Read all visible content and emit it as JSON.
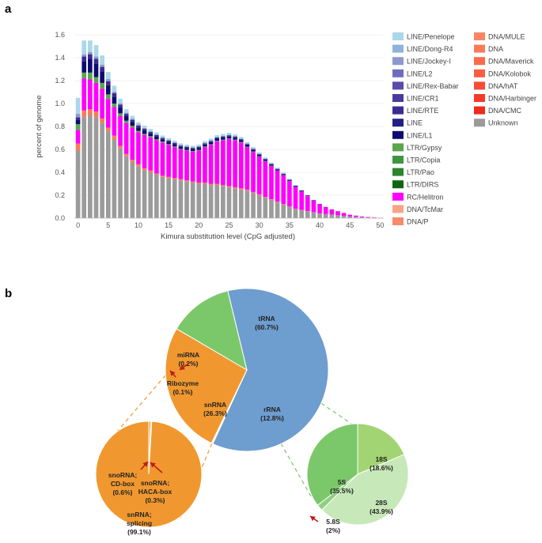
{
  "panels": {
    "a": "a",
    "b": "b"
  },
  "chart_data": [
    {
      "type": "bar",
      "stacked": true,
      "xlabel": "Kimura substitution level (CpG adjusted)",
      "ylabel": "percent of genome",
      "x": [
        0,
        1,
        2,
        3,
        4,
        5,
        6,
        7,
        8,
        9,
        10,
        11,
        12,
        13,
        14,
        15,
        16,
        17,
        18,
        19,
        20,
        21,
        22,
        23,
        24,
        25,
        26,
        27,
        28,
        29,
        30,
        31,
        32,
        33,
        34,
        35,
        36,
        37,
        38,
        39,
        40,
        41,
        42,
        43,
        44,
        45,
        46,
        47,
        48,
        49,
        50
      ],
      "xticks": [
        "0",
        "5",
        "10",
        "15",
        "20",
        "25",
        "30",
        "35",
        "40",
        "45",
        "50"
      ],
      "yticks": [
        "0.0",
        "0.2",
        "0.4",
        "0.6",
        "0.8",
        "1.0",
        "1.2",
        "1.4",
        "1.6"
      ],
      "ylim": [
        0,
        1.6
      ],
      "xlim": [
        -0.6,
        50.6
      ],
      "legend": [
        {
          "name": "LINE/Penelope",
          "color": "#a9d8e9"
        },
        {
          "name": "LINE/Dong-R4",
          "color": "#8fb3d9"
        },
        {
          "name": "LINE/Jockey-I",
          "color": "#8e99cf"
        },
        {
          "name": "LINE/L2",
          "color": "#6e6cbe"
        },
        {
          "name": "LINE/Rex-Babar",
          "color": "#5a4cab"
        },
        {
          "name": "LINE/CR1",
          "color": "#4a3aa0"
        },
        {
          "name": "LINE/RTE",
          "color": "#3b2b92"
        },
        {
          "name": "LINE",
          "color": "#241f86"
        },
        {
          "name": "LINE/L1",
          "color": "#0c0c70"
        },
        {
          "name": "LTR/Gypsy",
          "color": "#5aa64e"
        },
        {
          "name": "LTR/Copia",
          "color": "#3f9640"
        },
        {
          "name": "LTR/Pao",
          "color": "#2b852f"
        },
        {
          "name": "LTR/DIRS",
          "color": "#0e6614"
        },
        {
          "name": "RC/Helitron",
          "color": "#ff00ff"
        },
        {
          "name": "DNA/TcMar",
          "color": "#f8a383"
        },
        {
          "name": "DNA/P",
          "color": "#f88a6c"
        },
        {
          "name": "DNA/MULE",
          "color": "#f98565"
        },
        {
          "name": "DNA",
          "color": "#fa7a58"
        },
        {
          "name": "DNA/Maverick",
          "color": "#fa6b4c"
        },
        {
          "name": "DNA/Kolobok",
          "color": "#fa5c40"
        },
        {
          "name": "DNA/hAT",
          "color": "#f84c34"
        },
        {
          "name": "DNA/Harbinger",
          "color": "#f53a28"
        },
        {
          "name": "DNA/CMC",
          "color": "#f02a1c"
        },
        {
          "name": "Unknown",
          "color": "#9b9b9b"
        }
      ],
      "series_values": {
        "Unknown": [
          0.59,
          0.88,
          0.9,
          0.88,
          0.83,
          0.76,
          0.69,
          0.61,
          0.54,
          0.49,
          0.45,
          0.42,
          0.4,
          0.38,
          0.36,
          0.35,
          0.34,
          0.33,
          0.32,
          0.31,
          0.3,
          0.3,
          0.29,
          0.29,
          0.28,
          0.27,
          0.26,
          0.25,
          0.24,
          0.22,
          0.2,
          0.18,
          0.16,
          0.14,
          0.12,
          0.1,
          0.08,
          0.07,
          0.06,
          0.05,
          0.04,
          0.035,
          0.03,
          0.025,
          0.02,
          0.015,
          0.012,
          0.008,
          0.005,
          0.003,
          0.002
        ],
        "DNA": [
          0.06,
          0.06,
          0.05,
          0.05,
          0.04,
          0.03,
          0.03,
          0.02,
          0.02,
          0.02,
          0.02,
          0.015,
          0.015,
          0.01,
          0.01,
          0.01,
          0.01,
          0.01,
          0.01,
          0.01,
          0.01,
          0.01,
          0.01,
          0.01,
          0.01,
          0.01,
          0.01,
          0.01,
          0.01,
          0.008,
          0.008,
          0.006,
          0.005,
          0.004,
          0.004,
          0.003,
          0.003,
          0.002,
          0.002,
          0.002,
          0.001,
          0.001,
          0.001,
          0,
          0,
          0,
          0,
          0,
          0,
          0,
          0
        ],
        "RC/Helitron": [
          0.12,
          0.28,
          0.26,
          0.25,
          0.26,
          0.25,
          0.25,
          0.26,
          0.27,
          0.28,
          0.28,
          0.29,
          0.29,
          0.29,
          0.29,
          0.28,
          0.27,
          0.26,
          0.26,
          0.26,
          0.28,
          0.31,
          0.34,
          0.37,
          0.39,
          0.41,
          0.41,
          0.4,
          0.37,
          0.35,
          0.33,
          0.31,
          0.29,
          0.27,
          0.25,
          0.22,
          0.19,
          0.16,
          0.13,
          0.1,
          0.08,
          0.06,
          0.045,
          0.035,
          0.025,
          0.015,
          0.01,
          0.007,
          0.005,
          0.003,
          0.002
        ],
        "LTR/Gypsy": [
          0.05,
          0.05,
          0.06,
          0.05,
          0.05,
          0.04,
          0.03,
          0.025,
          0.02,
          0.015,
          0.012,
          0.01,
          0.01,
          0.008,
          0.008,
          0.006,
          0.006,
          0.005,
          0.005,
          0.005,
          0.005,
          0.005,
          0.005,
          0.005,
          0.005,
          0.005,
          0.005,
          0.004,
          0.004,
          0.004,
          0.003,
          0.003,
          0.003,
          0.002,
          0.002,
          0.002,
          0.001,
          0.001,
          0.001,
          0,
          0,
          0,
          0,
          0,
          0,
          0,
          0,
          0,
          0,
          0,
          0
        ],
        "LINE/L1": [
          0.04,
          0.1,
          0.12,
          0.12,
          0.1,
          0.08,
          0.06,
          0.05,
          0.04,
          0.035,
          0.03,
          0.03,
          0.025,
          0.025,
          0.02,
          0.02,
          0.02,
          0.018,
          0.018,
          0.018,
          0.018,
          0.018,
          0.018,
          0.018,
          0.018,
          0.018,
          0.016,
          0.015,
          0.014,
          0.013,
          0.012,
          0.011,
          0.01,
          0.009,
          0.008,
          0.007,
          0.006,
          0.005,
          0.004,
          0.003,
          0.002,
          0.002,
          0.001,
          0.001,
          0,
          0,
          0,
          0,
          0,
          0,
          0
        ],
        "LINE/RTE": [
          0.02,
          0.04,
          0.04,
          0.04,
          0.04,
          0.035,
          0.03,
          0.025,
          0.02,
          0.018,
          0.015,
          0.014,
          0.012,
          0.012,
          0.011,
          0.01,
          0.01,
          0.01,
          0.01,
          0.01,
          0.01,
          0.01,
          0.01,
          0.01,
          0.01,
          0.01,
          0.01,
          0.01,
          0.009,
          0.008,
          0.007,
          0.006,
          0.005,
          0.005,
          0.004,
          0.004,
          0.003,
          0.003,
          0.002,
          0.002,
          0.001,
          0.001,
          0,
          0,
          0,
          0,
          0,
          0,
          0,
          0,
          0
        ],
        "LINE/Jockey-I": [
          0.03,
          0.02,
          0.02,
          0.02,
          0.02,
          0.02,
          0.015,
          0.012,
          0.01,
          0.01,
          0.01,
          0.008,
          0.008,
          0.008,
          0.007,
          0.007,
          0.007,
          0.007,
          0.006,
          0.006,
          0.006,
          0.006,
          0.006,
          0.006,
          0.006,
          0.006,
          0.006,
          0.005,
          0.005,
          0.005,
          0.004,
          0.004,
          0.003,
          0.003,
          0.003,
          0.002,
          0.002,
          0.002,
          0.001,
          0.001,
          0,
          0,
          0,
          0,
          0,
          0,
          0,
          0,
          0,
          0,
          0
        ],
        "LINE/Penelope": [
          0.14,
          0.12,
          0.1,
          0.1,
          0.08,
          0.06,
          0.05,
          0.04,
          0.03,
          0.025,
          0.02,
          0.02,
          0.018,
          0.016,
          0.015,
          0.015,
          0.014,
          0.013,
          0.013,
          0.013,
          0.013,
          0.014,
          0.015,
          0.015,
          0.016,
          0.016,
          0.015,
          0.014,
          0.013,
          0.012,
          0.011,
          0.01,
          0.009,
          0.008,
          0.007,
          0.006,
          0.005,
          0.004,
          0.003,
          0.002,
          0.002,
          0.001,
          0.001,
          0,
          0,
          0,
          0,
          0,
          0,
          0,
          0
        ]
      }
    },
    {
      "type": "pie",
      "labels": [
        "tRNA",
        "miRNA",
        "Ribozyme",
        "snRNA",
        "rRNA"
      ],
      "texts": [
        "tRNA",
        "(60.7%)",
        "miRNA",
        "(0.2%)",
        "Ribozyme",
        "(0.1%)",
        "snRNA",
        "(26.3%)",
        "rRNA",
        "(12.8%)"
      ],
      "values": [
        60.7,
        0.2,
        0.1,
        26.3,
        12.8
      ],
      "colors": [
        "#6e9dcf",
        "#f0982f",
        "#f0982f",
        "#f0982f",
        "#7bc86a"
      ]
    },
    {
      "type": "pie",
      "labels": [
        "snoRNA; CD-box",
        "snoRNA; HACA-box",
        "snRNA; splicing"
      ],
      "texts": [
        "snoRNA;",
        "CD-box",
        "(0.6%)",
        "snoRNA;",
        "HACA-box",
        "(0.3%)",
        "snRNA;",
        "splicing",
        "(99.1%)"
      ],
      "values": [
        0.6,
        0.3,
        99.1
      ],
      "colors": [
        "#f0982f",
        "#f0982f",
        "#f0982f"
      ]
    },
    {
      "type": "pie",
      "labels": [
        "18S",
        "28S",
        "5.8S",
        "5S"
      ],
      "texts": [
        "18S",
        "(18.6%)",
        "28S",
        "(43.9%)",
        "5.8S",
        "(2%)",
        "5S",
        "(35.5%)"
      ],
      "values": [
        18.6,
        43.9,
        2,
        35.5
      ],
      "colors": [
        "#a3d474",
        "#c7e8b8",
        "#8fd07f",
        "#7bc86a"
      ]
    }
  ]
}
